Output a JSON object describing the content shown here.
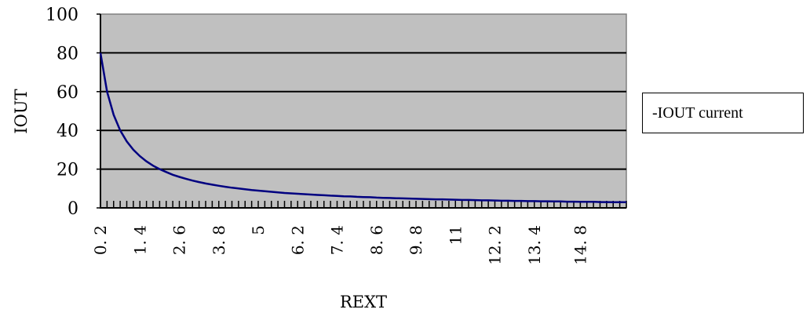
{
  "chart_data": {
    "type": "line",
    "xlabel": "REXT",
    "ylabel": "IOUT",
    "ylim": [
      0,
      100
    ],
    "y_ticks": [
      0,
      20,
      40,
      60,
      80,
      100
    ],
    "x_tick_labels": [
      "0. 2",
      "1. 4",
      "2. 6",
      "3. 8",
      "5",
      "6. 2",
      "7. 4",
      "8. 6",
      "9. 8",
      "11",
      "12. 2",
      "13. 4",
      "14. 8"
    ],
    "x_tick_values": [
      0.2,
      1.4,
      2.6,
      3.8,
      5,
      6.2,
      7.4,
      8.6,
      9.8,
      11,
      12.2,
      13.4,
      14.8
    ],
    "xlim": [
      0.2,
      16.2
    ],
    "grid": true,
    "plot_background": "#c0c0c0",
    "legend_placement": "right",
    "series": [
      {
        "name": "-IOUT current",
        "color": "#000080",
        "x": [
          0.2,
          0.4,
          0.6,
          0.8,
          1.0,
          1.2,
          1.4,
          1.6,
          1.8,
          2.0,
          2.2,
          2.4,
          2.6,
          2.8,
          3.0,
          3.2,
          3.4,
          3.6,
          3.8,
          4.0,
          4.2,
          4.4,
          4.6,
          4.8,
          5.0,
          5.2,
          5.4,
          5.6,
          5.8,
          6.0,
          6.2,
          6.4,
          6.6,
          6.8,
          7.0,
          7.2,
          7.4,
          7.6,
          7.8,
          8.0,
          8.2,
          8.4,
          8.6,
          8.8,
          9.0,
          9.2,
          9.4,
          9.6,
          9.8,
          10.0,
          10.2,
          10.4,
          10.6,
          10.8,
          11.0,
          11.2,
          11.4,
          11.6,
          11.8,
          12.0,
          12.2,
          12.4,
          12.6,
          12.8,
          13.0,
          13.2,
          13.4,
          13.6,
          13.8,
          14.0,
          14.2,
          14.4,
          14.6,
          14.8,
          15.0,
          15.2,
          15.4,
          15.6,
          15.8,
          16.0,
          16.2
        ],
        "y": [
          80.0,
          60.0,
          48.0,
          40.0,
          34.3,
          30.0,
          26.7,
          24.0,
          21.8,
          20.0,
          18.5,
          17.1,
          16.0,
          15.0,
          14.1,
          13.3,
          12.6,
          12.0,
          11.4,
          10.9,
          10.4,
          10.0,
          9.6,
          9.2,
          8.9,
          8.6,
          8.3,
          8.0,
          7.7,
          7.5,
          7.3,
          7.1,
          6.9,
          6.7,
          6.5,
          6.3,
          6.2,
          6.0,
          5.9,
          5.7,
          5.6,
          5.5,
          5.3,
          5.2,
          5.1,
          5.0,
          4.9,
          4.8,
          4.7,
          4.6,
          4.5,
          4.4,
          4.4,
          4.3,
          4.2,
          4.1,
          4.1,
          4.0,
          3.9,
          3.9,
          3.8,
          3.7,
          3.7,
          3.6,
          3.6,
          3.5,
          3.5,
          3.4,
          3.4,
          3.3,
          3.3,
          3.2,
          3.2,
          3.1,
          3.1,
          3.1,
          3.0,
          3.0,
          2.9,
          2.9,
          2.9
        ]
      }
    ]
  }
}
